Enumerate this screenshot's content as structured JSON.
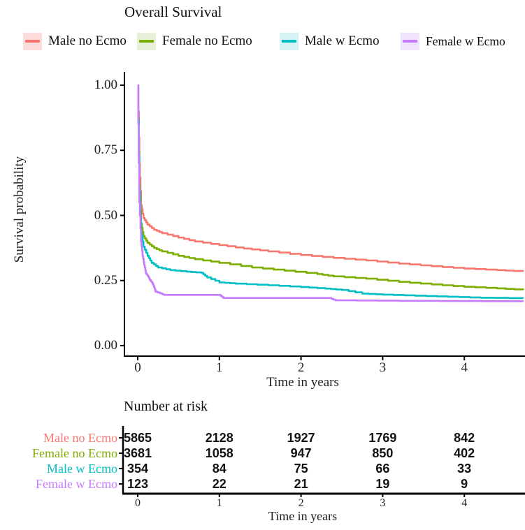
{
  "chart_data": {
    "type": "line",
    "subtype": "kaplan-meier-step",
    "title": "Overall Survival",
    "xlabel": "Time in years",
    "ylabel": "Survival probability",
    "xlim": [
      0,
      4.74
    ],
    "ylim": [
      0,
      1
    ],
    "x_ticks": [
      0,
      1,
      2,
      3,
      4
    ],
    "y_ticks": [
      "0.00",
      "0.25",
      "0.50",
      "0.75",
      "1.00"
    ],
    "y_tick_values": [
      0,
      0.25,
      0.5,
      0.75,
      1.0
    ],
    "grid": false,
    "legend_position": "top",
    "series": [
      {
        "name": "Male no Ecmo",
        "color": "#F8766D",
        "legend_fill": "#FBDEDB",
        "points": [
          [
            0,
            1.0
          ],
          [
            0.02,
            0.7
          ],
          [
            0.04,
            0.54
          ],
          [
            0.07,
            0.49
          ],
          [
            0.12,
            0.465
          ],
          [
            0.2,
            0.445
          ],
          [
            0.3,
            0.432
          ],
          [
            0.5,
            0.415
          ],
          [
            0.7,
            0.4
          ],
          [
            1.0,
            0.386
          ],
          [
            1.3,
            0.373
          ],
          [
            1.6,
            0.362
          ],
          [
            2.0,
            0.348
          ],
          [
            2.4,
            0.337
          ],
          [
            2.8,
            0.327
          ],
          [
            3.2,
            0.315
          ],
          [
            3.6,
            0.305
          ],
          [
            4.0,
            0.296
          ],
          [
            4.4,
            0.29
          ],
          [
            4.72,
            0.285
          ]
        ]
      },
      {
        "name": "Female no Ecmo",
        "color": "#7CAE00",
        "legend_fill": "#E9F0D8",
        "points": [
          [
            0,
            1.0
          ],
          [
            0.02,
            0.62
          ],
          [
            0.04,
            0.47
          ],
          [
            0.07,
            0.42
          ],
          [
            0.12,
            0.395
          ],
          [
            0.2,
            0.375
          ],
          [
            0.3,
            0.362
          ],
          [
            0.5,
            0.345
          ],
          [
            0.7,
            0.332
          ],
          [
            1.0,
            0.318
          ],
          [
            1.4,
            0.3
          ],
          [
            1.8,
            0.288
          ],
          [
            2.2,
            0.275
          ],
          [
            2.4,
            0.266
          ],
          [
            2.8,
            0.257
          ],
          [
            3.2,
            0.245
          ],
          [
            3.6,
            0.235
          ],
          [
            4.0,
            0.226
          ],
          [
            4.4,
            0.22
          ],
          [
            4.72,
            0.214
          ]
        ]
      },
      {
        "name": "Male w Ecmo",
        "color": "#00BFC4",
        "legend_fill": "#D5F3F4",
        "points": [
          [
            0,
            1.0
          ],
          [
            0.02,
            0.6
          ],
          [
            0.04,
            0.44
          ],
          [
            0.07,
            0.38
          ],
          [
            0.12,
            0.345
          ],
          [
            0.17,
            0.318
          ],
          [
            0.25,
            0.3
          ],
          [
            0.4,
            0.29
          ],
          [
            0.6,
            0.284
          ],
          [
            0.78,
            0.28
          ],
          [
            0.85,
            0.262
          ],
          [
            1.0,
            0.243
          ],
          [
            1.2,
            0.238
          ],
          [
            1.6,
            0.232
          ],
          [
            2.0,
            0.225
          ],
          [
            2.3,
            0.219
          ],
          [
            2.5,
            0.214
          ],
          [
            2.75,
            0.2
          ],
          [
            3.0,
            0.196
          ],
          [
            3.4,
            0.192
          ],
          [
            3.8,
            0.188
          ],
          [
            4.2,
            0.184
          ],
          [
            4.72,
            0.182
          ]
        ]
      },
      {
        "name": "Female w Ecmo",
        "color": "#C77CFF",
        "legend_fill": "#F1E3FE",
        "points": [
          [
            0,
            1.0
          ],
          [
            0.02,
            0.55
          ],
          [
            0.04,
            0.4
          ],
          [
            0.06,
            0.345
          ],
          [
            0.08,
            0.31
          ],
          [
            0.1,
            0.278
          ],
          [
            0.13,
            0.265
          ],
          [
            0.15,
            0.252
          ],
          [
            0.18,
            0.24
          ],
          [
            0.2,
            0.225
          ],
          [
            0.22,
            0.207
          ],
          [
            0.3,
            0.198
          ],
          [
            0.33,
            0.195
          ],
          [
            1.0,
            0.195
          ],
          [
            1.05,
            0.183
          ],
          [
            2.35,
            0.183
          ],
          [
            2.42,
            0.174
          ],
          [
            3.2,
            0.172
          ],
          [
            4.72,
            0.17
          ]
        ]
      }
    ]
  },
  "risk_table": {
    "title": "Number at risk",
    "xlabel": "Time in years",
    "x_ticks": [
      0,
      1,
      2,
      3,
      4
    ],
    "rows": [
      {
        "label": "Male no Ecmo",
        "color": "#F8766D",
        "values": [
          "5865",
          "2128",
          "1927",
          "1769",
          "842"
        ]
      },
      {
        "label": "Female no Ecmo",
        "color": "#7CAE00",
        "values": [
          "3681",
          "1058",
          "947",
          "850",
          "402"
        ]
      },
      {
        "label": "Male w Ecmo",
        "color": "#00BFC4",
        "values": [
          "354",
          "84",
          "75",
          "66",
          "33"
        ]
      },
      {
        "label": "Female w Ecmo",
        "color": "#C77CFF",
        "values": [
          "123",
          "22",
          "21",
          "19",
          "9"
        ]
      }
    ]
  }
}
